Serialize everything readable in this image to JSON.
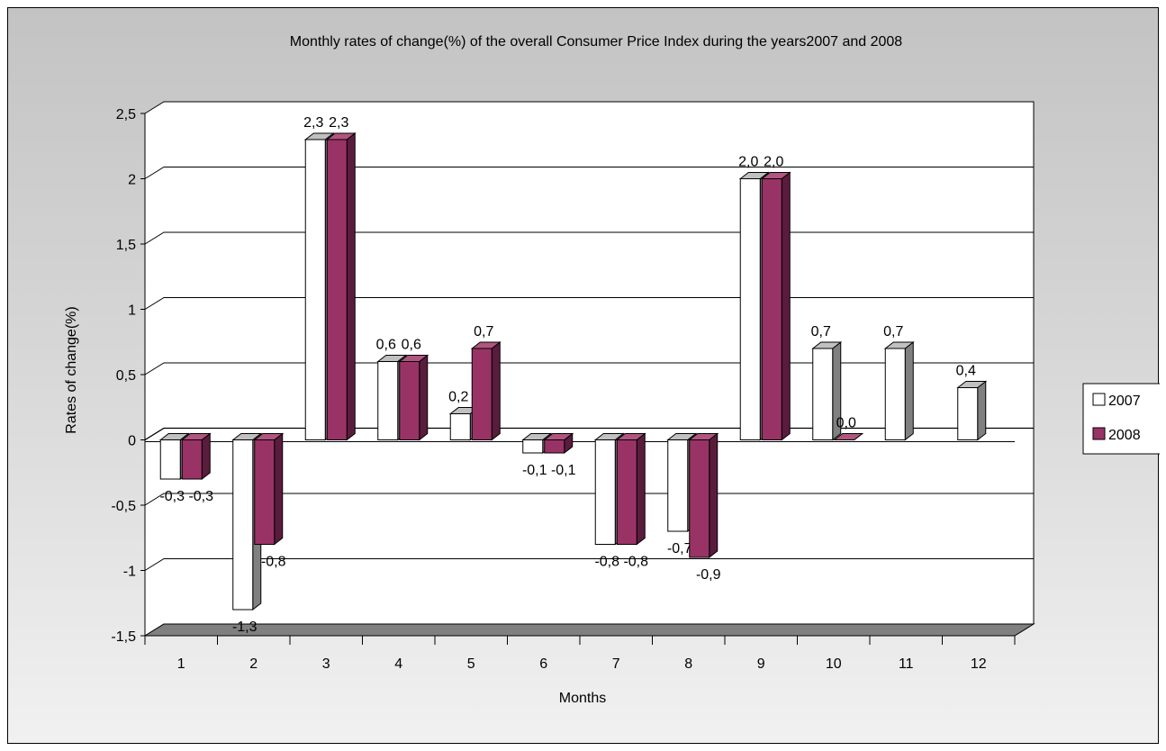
{
  "chart_data": {
    "type": "bar",
    "title": "Monthly rates of change(%) of the overall Consumer Price Index during the years2007 and 2008",
    "xlabel": "Months",
    "ylabel": "Rates of change(%)",
    "categories": [
      "1",
      "2",
      "3",
      "4",
      "5",
      "6",
      "7",
      "8",
      "9",
      "10",
      "11",
      "12"
    ],
    "series": [
      {
        "name": "2007",
        "color": "#ffffff",
        "values": [
          -0.3,
          -1.3,
          2.3,
          0.6,
          0.2,
          -0.1,
          -0.8,
          -0.7,
          2.0,
          0.7,
          0.7,
          0.4
        ],
        "labels": [
          "-0,3",
          "-1,3",
          "2,3",
          "0,6",
          "0,2",
          "-0,1",
          "-0,8",
          "-0,7",
          "2,0",
          "0,7",
          "0,7",
          "0,4"
        ]
      },
      {
        "name": "2008",
        "color": "#993366",
        "values": [
          -0.3,
          -0.8,
          2.3,
          0.6,
          0.7,
          -0.1,
          -0.8,
          -0.9,
          2.0,
          0.0,
          null,
          null
        ],
        "labels": [
          "-0,3",
          "-0,8",
          "2,3",
          "0,6",
          "0,7",
          "-0,1",
          "-0,8",
          "-0,9",
          "2,0",
          "0,0",
          "",
          ""
        ]
      }
    ],
    "ylim": [
      -1.5,
      2.5
    ],
    "yticks": [
      "-1,5",
      "-1",
      "-0,5",
      "0",
      "0,5",
      "1",
      "1,5",
      "2",
      "2,5"
    ],
    "grid": true,
    "legend": "right",
    "three_d": true,
    "wall_color": "#ffffff",
    "floor_color": "#808080"
  }
}
